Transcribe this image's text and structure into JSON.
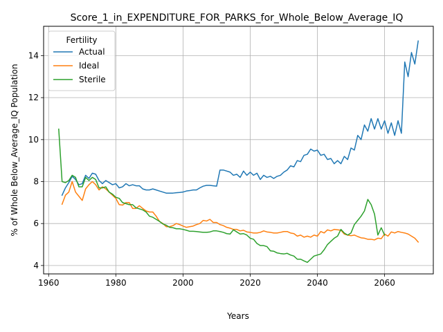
{
  "chart_data": {
    "type": "line",
    "title": "Score_1_in_EXPENDITURE_FOR_PARKS_for_Whole_Below_Average_IQ",
    "xlabel": "Years",
    "ylabel": "% of Whole Below_Average_IQ Population",
    "xlim": [
      1958.5,
      2074.5
    ],
    "ylim": [
      3.6,
      15.4
    ],
    "xticks": [
      1960,
      1980,
      2000,
      2020,
      2040,
      2060
    ],
    "yticks": [
      4,
      6,
      8,
      10,
      12,
      14
    ],
    "grid": true,
    "legend": {
      "title": "Fertility",
      "placement": "upper-left"
    },
    "series": [
      {
        "name": "Actual",
        "color": "#1f77b4",
        "x": [
          1964,
          1965,
          1966,
          1967,
          1968,
          1969,
          1970,
          1971,
          1972,
          1973,
          1974,
          1975,
          1976,
          1977,
          1978,
          1979,
          1980,
          1981,
          1982,
          1983,
          1984,
          1985,
          1986,
          1987,
          1988,
          1989,
          1990,
          1991,
          1992,
          1993,
          1994,
          1995,
          1996,
          1997,
          1998,
          1999,
          2000,
          2001,
          2002,
          2003,
          2004,
          2005,
          2006,
          2007,
          2008,
          2009,
          2010,
          2011,
          2012,
          2013,
          2014,
          2015,
          2016,
          2017,
          2018,
          2019,
          2020,
          2021,
          2022,
          2023,
          2024,
          2025,
          2026,
          2027,
          2028,
          2029,
          2030,
          2031,
          2032,
          2033,
          2034,
          2035,
          2036,
          2037,
          2038,
          2039,
          2040,
          2041,
          2042,
          2043,
          2044,
          2045,
          2046,
          2047,
          2048,
          2049,
          2050,
          2051,
          2052,
          2053,
          2054,
          2055,
          2056,
          2057,
          2058,
          2059,
          2060,
          2061,
          2062,
          2063,
          2064,
          2065,
          2066,
          2067,
          2068,
          2069,
          2070
        ],
        "y": [
          7.35,
          7.7,
          7.95,
          8.25,
          8.1,
          7.85,
          7.9,
          8.3,
          8.15,
          8.4,
          8.35,
          8.05,
          7.9,
          8.05,
          7.95,
          7.85,
          7.9,
          7.7,
          7.75,
          7.9,
          7.8,
          7.85,
          7.8,
          7.8,
          7.65,
          7.6,
          7.6,
          7.65,
          7.6,
          7.55,
          7.5,
          7.45,
          7.45,
          7.45,
          7.47,
          7.48,
          7.5,
          7.55,
          7.57,
          7.6,
          7.6,
          7.7,
          7.78,
          7.82,
          7.82,
          7.8,
          7.78,
          8.55,
          8.55,
          8.5,
          8.45,
          8.3,
          8.35,
          8.2,
          8.5,
          8.3,
          8.45,
          8.3,
          8.4,
          8.1,
          8.3,
          8.2,
          8.25,
          8.15,
          8.25,
          8.3,
          8.45,
          8.55,
          8.75,
          8.7,
          9.0,
          8.95,
          9.25,
          9.3,
          9.55,
          9.45,
          9.5,
          9.25,
          9.3,
          9.05,
          9.1,
          8.85,
          9.0,
          8.85,
          9.2,
          9.05,
          9.6,
          9.5,
          10.2,
          10.0,
          10.7,
          10.4,
          11.0,
          10.5,
          11.0,
          10.5,
          10.9,
          10.3,
          10.8,
          10.2,
          10.9,
          10.3,
          13.7,
          13.0,
          14.15,
          13.6,
          14.7
        ]
      },
      {
        "name": "Ideal",
        "color": "#ff7f0e",
        "x": [
          1964,
          1965,
          1966,
          1967,
          1968,
          1969,
          1970,
          1971,
          1972,
          1973,
          1974,
          1975,
          1976,
          1977,
          1978,
          1979,
          1980,
          1981,
          1982,
          1983,
          1984,
          1985,
          1986,
          1987,
          1988,
          1989,
          1990,
          1991,
          1992,
          1993,
          1994,
          1995,
          1996,
          1997,
          1998,
          1999,
          2000,
          2001,
          2002,
          2003,
          2004,
          2005,
          2006,
          2007,
          2008,
          2009,
          2010,
          2011,
          2012,
          2013,
          2014,
          2015,
          2016,
          2017,
          2018,
          2019,
          2020,
          2021,
          2022,
          2023,
          2024,
          2025,
          2026,
          2027,
          2028,
          2029,
          2030,
          2031,
          2032,
          2033,
          2034,
          2035,
          2036,
          2037,
          2038,
          2039,
          2040,
          2041,
          2042,
          2043,
          2044,
          2045,
          2046,
          2047,
          2048,
          2049,
          2050,
          2051,
          2052,
          2053,
          2054,
          2055,
          2056,
          2057,
          2058,
          2059,
          2060,
          2061,
          2062,
          2063,
          2064,
          2065,
          2066,
          2067,
          2068,
          2069,
          2070
        ],
        "y": [
          6.92,
          7.35,
          7.5,
          8.0,
          7.5,
          7.3,
          7.1,
          7.65,
          7.85,
          8.0,
          7.85,
          7.6,
          7.75,
          7.65,
          7.5,
          7.35,
          7.2,
          6.9,
          6.88,
          7.0,
          7.0,
          6.72,
          6.72,
          6.85,
          6.72,
          6.6,
          6.55,
          6.55,
          6.35,
          6.1,
          6.0,
          5.85,
          5.85,
          5.9,
          6.0,
          5.95,
          5.88,
          5.82,
          5.85,
          5.88,
          5.95,
          6.0,
          6.15,
          6.12,
          6.2,
          6.05,
          6.05,
          5.95,
          5.9,
          5.82,
          5.78,
          5.72,
          5.72,
          5.65,
          5.68,
          5.6,
          5.58,
          5.55,
          5.55,
          5.58,
          5.65,
          5.6,
          5.58,
          5.55,
          5.55,
          5.58,
          5.62,
          5.62,
          5.55,
          5.52,
          5.4,
          5.45,
          5.35,
          5.4,
          5.35,
          5.45,
          5.4,
          5.62,
          5.55,
          5.7,
          5.65,
          5.72,
          5.7,
          5.68,
          5.5,
          5.45,
          5.42,
          5.45,
          5.38,
          5.32,
          5.3,
          5.25,
          5.25,
          5.22,
          5.3,
          5.28,
          5.5,
          5.4,
          5.6,
          5.55,
          5.62,
          5.58,
          5.55,
          5.5,
          5.4,
          5.3,
          5.12
        ]
      },
      {
        "name": "Sterile",
        "color": "#2ca02c",
        "x": [
          1963,
          1964,
          1965,
          1966,
          1967,
          1968,
          1969,
          1970,
          1971,
          1972,
          1973,
          1974,
          1975,
          1976,
          1977,
          1978,
          1979,
          1980,
          1981,
          1982,
          1983,
          1984,
          1985,
          1986,
          1987,
          1988,
          1989,
          1990,
          1991,
          1992,
          1993,
          1994,
          1995,
          1996,
          1997,
          1998,
          1999,
          2000,
          2001,
          2002,
          2003,
          2004,
          2005,
          2006,
          2007,
          2008,
          2009,
          2010,
          2011,
          2012,
          2013,
          2014,
          2015,
          2016,
          2017,
          2018,
          2019,
          2020,
          2021,
          2022,
          2023,
          2024,
          2025,
          2026,
          2027,
          2028,
          2029,
          2030,
          2031,
          2032,
          2033,
          2034,
          2035,
          2036,
          2037,
          2038,
          2039,
          2040,
          2041,
          2042,
          2043,
          2044,
          2045,
          2046,
          2047,
          2048,
          2049,
          2050,
          2051,
          2052,
          2053,
          2054,
          2055,
          2056,
          2057,
          2058,
          2059,
          2060
        ],
        "y": [
          10.5,
          8.0,
          7.95,
          8.05,
          8.3,
          8.2,
          7.75,
          7.75,
          8.2,
          8.05,
          8.2,
          8.1,
          7.7,
          7.7,
          7.75,
          7.5,
          7.4,
          7.25,
          7.2,
          7.0,
          6.95,
          6.9,
          6.9,
          6.75,
          6.7,
          6.65,
          6.55,
          6.35,
          6.3,
          6.2,
          6.1,
          5.98,
          5.92,
          5.82,
          5.8,
          5.75,
          5.75,
          5.72,
          5.68,
          5.63,
          5.63,
          5.62,
          5.6,
          5.58,
          5.58,
          5.6,
          5.65,
          5.65,
          5.62,
          5.58,
          5.52,
          5.5,
          5.7,
          5.6,
          5.5,
          5.52,
          5.45,
          5.3,
          5.25,
          5.05,
          4.95,
          4.95,
          4.9,
          4.7,
          4.68,
          4.6,
          4.57,
          4.55,
          4.58,
          4.5,
          4.45,
          4.3,
          4.3,
          4.22,
          4.15,
          4.3,
          4.45,
          4.5,
          4.55,
          4.75,
          5.0,
          5.15,
          5.3,
          5.4,
          5.72,
          5.55,
          5.45,
          5.55,
          5.95,
          6.15,
          6.35,
          6.6,
          7.15,
          6.9,
          6.45,
          5.45,
          5.8,
          5.45
        ]
      }
    ]
  }
}
